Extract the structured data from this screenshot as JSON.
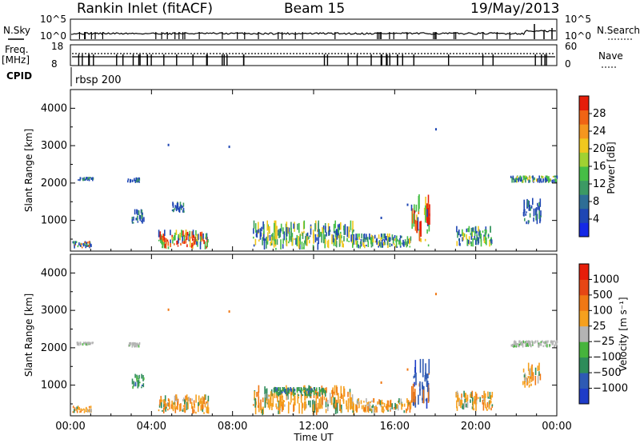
{
  "header": {
    "title": "Rankin Inlet (fitACF)",
    "beam": "Beam 15",
    "date": "19/May/2013"
  },
  "nsky_panel": {
    "left_label": "N.Sky",
    "right_label": "N.Search",
    "left_ticks": [
      "10^5",
      "10^0"
    ],
    "right_ticks": [
      "10^5",
      "10^0"
    ]
  },
  "freq_panel": {
    "left_label_1": "Freq.",
    "left_label_2": "[MHz]",
    "right_label": "Nave",
    "left_ticks": [
      "18",
      "8"
    ],
    "right_ticks": [
      "60",
      "0"
    ]
  },
  "cpid": {
    "label": "CPID",
    "value": "rbsp 200"
  },
  "colors": {
    "scatter_blue": "#2a48b4",
    "scatter_green": "#3c9a3c",
    "scatter_orange": "#f08c1e",
    "scatter_red": "#e82010",
    "ground_gray": "#b4b4b4"
  },
  "chart_data": [
    {
      "type": "heatmap",
      "name": "power",
      "ylabel": "Slant Range [km]",
      "xlabel": "",
      "xlim": [
        0,
        24
      ],
      "ylim": [
        180,
        4500
      ],
      "y_ticks": [
        "1000",
        "2000",
        "3000",
        "4000"
      ],
      "y_tick_values": [
        1000,
        2000,
        3000,
        4000
      ],
      "colorbar": {
        "label": "Power [dB]",
        "ticks": [
          "4",
          "8",
          "12",
          "16",
          "20",
          "24",
          "28"
        ],
        "colors": [
          "#1428e6",
          "#1e46b4",
          "#2e6e96",
          "#3c9a64",
          "#46be46",
          "#a0d232",
          "#f0c81e",
          "#f5961e",
          "#f06414",
          "#e61e0a"
        ]
      },
      "patches": [
        {
          "x": [
            0.1,
            1.0
          ],
          "y": [
            250,
            450
          ],
          "level": "mixed"
        },
        {
          "x": [
            0.3,
            1.1
          ],
          "y": [
            2050,
            2160
          ],
          "level": "low"
        },
        {
          "x": [
            2.8,
            3.4
          ],
          "y": [
            2000,
            2150
          ],
          "level": "low"
        },
        {
          "x": [
            3.0,
            3.6
          ],
          "y": [
            900,
            1300
          ],
          "level": "low"
        },
        {
          "x": [
            4.3,
            6.8
          ],
          "y": [
            220,
            750
          ],
          "level": "high"
        },
        {
          "x": [
            5.0,
            5.6
          ],
          "y": [
            1200,
            1500
          ],
          "level": "low"
        },
        {
          "x": [
            9.0,
            14.0
          ],
          "y": [
            200,
            1000
          ],
          "level": "mid"
        },
        {
          "x": [
            14.0,
            16.8
          ],
          "y": [
            250,
            650
          ],
          "level": "mid"
        },
        {
          "x": [
            16.8,
            17.7
          ],
          "y": [
            300,
            1700
          ],
          "level": "high"
        },
        {
          "x": [
            19.0,
            20.8
          ],
          "y": [
            300,
            850
          ],
          "level": "mid"
        },
        {
          "x": [
            21.7,
            24.0
          ],
          "y": [
            2000,
            2200
          ],
          "level": "mid"
        },
        {
          "x": [
            22.3,
            23.2
          ],
          "y": [
            900,
            1600
          ],
          "level": "low"
        }
      ]
    },
    {
      "type": "heatmap",
      "name": "velocity",
      "ylabel": "Slant Range [km]",
      "xlabel": "Time UT",
      "xlim": [
        0,
        24
      ],
      "ylim": [
        180,
        4500
      ],
      "x_ticks": [
        "00:00",
        "04:00",
        "08:00",
        "12:00",
        "16:00",
        "20:00",
        "00:00"
      ],
      "x_tick_values": [
        0,
        4,
        8,
        12,
        16,
        20,
        24
      ],
      "y_ticks": [
        "1000",
        "2000",
        "3000",
        "4000"
      ],
      "y_tick_values": [
        1000,
        2000,
        3000,
        4000
      ],
      "colorbar": {
        "label": "Velocity [m s⁻¹]",
        "ticks": [
          "1000",
          "500",
          "100",
          "25",
          "−25",
          "−100",
          "−500",
          "−1000"
        ],
        "colors": [
          "#1e3cc8",
          "#2e5ab4",
          "#2e8c5a",
          "#46b43c",
          "#b4b4b4",
          "#f5a01e",
          "#f07814",
          "#e64614",
          "#e61e0a"
        ]
      },
      "patches": [
        {
          "x": [
            0.1,
            1.0
          ],
          "y": [
            250,
            450
          ],
          "level": "orange"
        },
        {
          "x": [
            0.3,
            1.1
          ],
          "y": [
            2050,
            2160
          ],
          "level": "gray"
        },
        {
          "x": [
            2.8,
            3.4
          ],
          "y": [
            2000,
            2150
          ],
          "level": "gray"
        },
        {
          "x": [
            3.0,
            3.6
          ],
          "y": [
            900,
            1300
          ],
          "level": "green"
        },
        {
          "x": [
            4.3,
            6.8
          ],
          "y": [
            220,
            750
          ],
          "level": "orange"
        },
        {
          "x": [
            9.0,
            14.0
          ],
          "y": [
            200,
            1000
          ],
          "level": "orange"
        },
        {
          "x": [
            10.0,
            12.5
          ],
          "y": [
            700,
            950
          ],
          "level": "green"
        },
        {
          "x": [
            14.0,
            16.8
          ],
          "y": [
            250,
            650
          ],
          "level": "orange"
        },
        {
          "x": [
            16.8,
            17.7
          ],
          "y": [
            300,
            1700
          ],
          "level": "blue"
        },
        {
          "x": [
            19.0,
            20.8
          ],
          "y": [
            300,
            850
          ],
          "level": "orange"
        },
        {
          "x": [
            21.7,
            24.0
          ],
          "y": [
            2000,
            2200
          ],
          "level": "gray"
        },
        {
          "x": [
            22.3,
            23.2
          ],
          "y": [
            900,
            1600
          ],
          "level": "orange"
        }
      ]
    }
  ]
}
